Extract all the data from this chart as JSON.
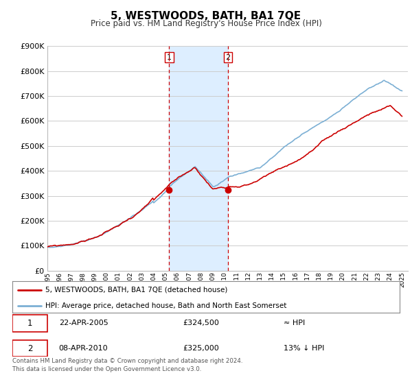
{
  "title": "5, WESTWOODS, BATH, BA1 7QE",
  "subtitle": "Price paid vs. HM Land Registry's House Price Index (HPI)",
  "ylim": [
    0,
    900000
  ],
  "xlim_start": 1995.0,
  "xlim_end": 2025.5,
  "sale1_year": 2005.31,
  "sale1_price": 324500,
  "sale2_year": 2010.27,
  "sale2_price": 325000,
  "hpi_color": "#7bafd4",
  "price_color": "#cc0000",
  "shade_color": "#ddeeff",
  "vline_color": "#cc0000",
  "legend_line1": "5, WESTWOODS, BATH, BA1 7QE (detached house)",
  "legend_line2": "HPI: Average price, detached house, Bath and North East Somerset",
  "table_row1_date": "22-APR-2005",
  "table_row1_price": "£324,500",
  "table_row1_hpi": "≈ HPI",
  "table_row2_date": "08-APR-2010",
  "table_row2_price": "£325,000",
  "table_row2_hpi": "13% ↓ HPI",
  "footnote": "Contains HM Land Registry data © Crown copyright and database right 2024.\nThis data is licensed under the Open Government Licence v3.0.",
  "background_color": "#ffffff",
  "grid_color": "#cccccc"
}
